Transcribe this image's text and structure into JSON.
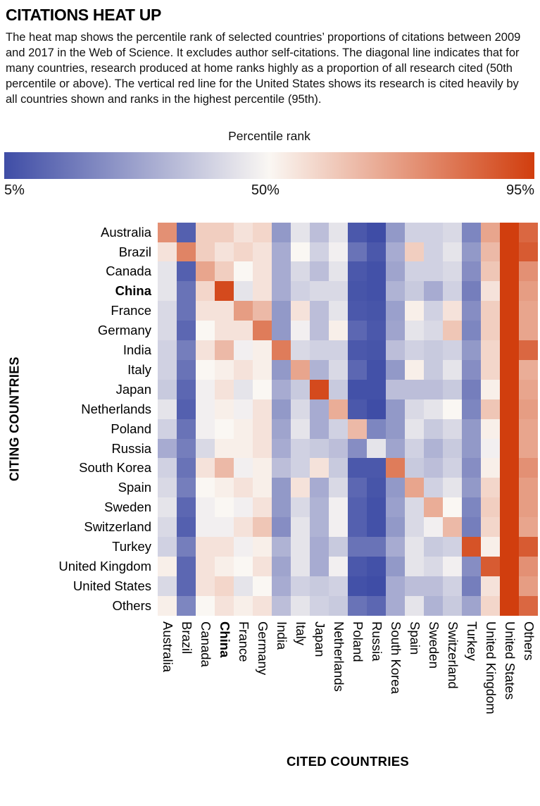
{
  "header": {
    "title": "CITATIONS HEAT UP",
    "description": "The heat map shows the percentile rank of selected countries’ proportions of citations between 2009 and 2017 in the Web of Science. It excludes author self-citations. The diagonal line indicates that for many countries, research produced at home ranks highly as a proportion of all research cited (50th percentile or above). The vertical red line for the United States shows its research is cited heavily by all countries shown and ranks in the highest percentile (95th)."
  },
  "legend": {
    "title": "Percentile rank",
    "ticks": [
      "5%",
      "50%",
      "95%"
    ],
    "color_low": "#3F4DA6",
    "color_mid": "#FAF7F3",
    "color_high": "#D13E0E"
  },
  "chart_data": {
    "type": "heatmap",
    "title": "CITATIONS HEAT UP",
    "xlabel": "CITED COUNTRIES",
    "ylabel": "CITING COUNTRIES",
    "value_label": "Percentile rank",
    "scale": {
      "min": 5,
      "mid": 50,
      "max": 95
    },
    "legend_position": "top",
    "emphasized_category": "China",
    "categories": [
      "Australia",
      "Brazil",
      "Canada",
      "China",
      "France",
      "Germany",
      "India",
      "Italy",
      "Japan",
      "Netherlands",
      "Poland",
      "Russia",
      "South Korea",
      "Spain",
      "Sweden",
      "Switzerland",
      "Turkey",
      "United Kingdom",
      "United States",
      "Others"
    ],
    "rows": [
      [
        75,
        10,
        60,
        60,
        55,
        58,
        25,
        45,
        35,
        45,
        8,
        5,
        25,
        40,
        40,
        42,
        20,
        70,
        95,
        85
      ],
      [
        55,
        78,
        60,
        55,
        58,
        55,
        30,
        50,
        40,
        48,
        15,
        8,
        30,
        60,
        40,
        45,
        25,
        65,
        95,
        88
      ],
      [
        45,
        10,
        70,
        60,
        50,
        55,
        30,
        42,
        35,
        45,
        8,
        6,
        28,
        40,
        40,
        42,
        22,
        62,
        95,
        75
      ],
      [
        45,
        15,
        58,
        92,
        45,
        55,
        30,
        40,
        42,
        42,
        7,
        6,
        32,
        38,
        30,
        40,
        18,
        55,
        95,
        72
      ],
      [
        42,
        15,
        55,
        55,
        72,
        65,
        25,
        55,
        35,
        45,
        8,
        7,
        27,
        52,
        40,
        55,
        22,
        60,
        95,
        70
      ],
      [
        42,
        12,
        50,
        55,
        55,
        80,
        25,
        48,
        35,
        52,
        12,
        8,
        28,
        45,
        42,
        62,
        20,
        60,
        95,
        70
      ],
      [
        40,
        18,
        55,
        65,
        48,
        52,
        80,
        42,
        40,
        40,
        8,
        7,
        35,
        40,
        38,
        40,
        25,
        58,
        95,
        85
      ],
      [
        40,
        15,
        50,
        52,
        55,
        52,
        25,
        70,
        32,
        42,
        12,
        6,
        25,
        52,
        38,
        45,
        22,
        58,
        95,
        68
      ],
      [
        38,
        12,
        48,
        55,
        45,
        50,
        30,
        38,
        92,
        38,
        6,
        6,
        35,
        35,
        35,
        38,
        18,
        52,
        95,
        70
      ],
      [
        45,
        10,
        48,
        52,
        48,
        55,
        25,
        42,
        30,
        68,
        8,
        5,
        25,
        42,
        45,
        50,
        20,
        62,
        95,
        72
      ],
      [
        40,
        15,
        48,
        50,
        52,
        55,
        28,
        45,
        30,
        40,
        65,
        20,
        25,
        45,
        38,
        42,
        25,
        52,
        95,
        70
      ],
      [
        30,
        18,
        42,
        52,
        52,
        55,
        30,
        40,
        38,
        35,
        22,
        45,
        28,
        40,
        32,
        38,
        25,
        48,
        95,
        70
      ],
      [
        40,
        15,
        55,
        65,
        48,
        52,
        35,
        40,
        55,
        38,
        8,
        8,
        80,
        38,
        35,
        40,
        22,
        52,
        95,
        75
      ],
      [
        42,
        18,
        50,
        52,
        55,
        52,
        25,
        55,
        30,
        42,
        12,
        7,
        25,
        70,
        40,
        45,
        25,
        58,
        95,
        72
      ],
      [
        45,
        12,
        48,
        50,
        48,
        55,
        25,
        42,
        32,
        48,
        10,
        6,
        27,
        42,
        68,
        50,
        20,
        60,
        95,
        72
      ],
      [
        42,
        10,
        48,
        48,
        55,
        62,
        22,
        45,
        32,
        48,
        10,
        6,
        25,
        42,
        48,
        65,
        18,
        58,
        95,
        70
      ],
      [
        40,
        18,
        55,
        55,
        48,
        52,
        32,
        45,
        30,
        38,
        15,
        15,
        30,
        45,
        38,
        40,
        90,
        52,
        95,
        88
      ],
      [
        52,
        12,
        55,
        52,
        50,
        55,
        28,
        45,
        30,
        48,
        8,
        6,
        25,
        45,
        42,
        48,
        22,
        88,
        95,
        75
      ],
      [
        42,
        12,
        55,
        58,
        45,
        50,
        30,
        40,
        38,
        40,
        6,
        5,
        30,
        35,
        35,
        40,
        18,
        55,
        95,
        72
      ],
      [
        52,
        20,
        50,
        55,
        52,
        55,
        35,
        45,
        40,
        38,
        15,
        12,
        30,
        45,
        32,
        38,
        28,
        58,
        95,
        85
      ]
    ]
  }
}
